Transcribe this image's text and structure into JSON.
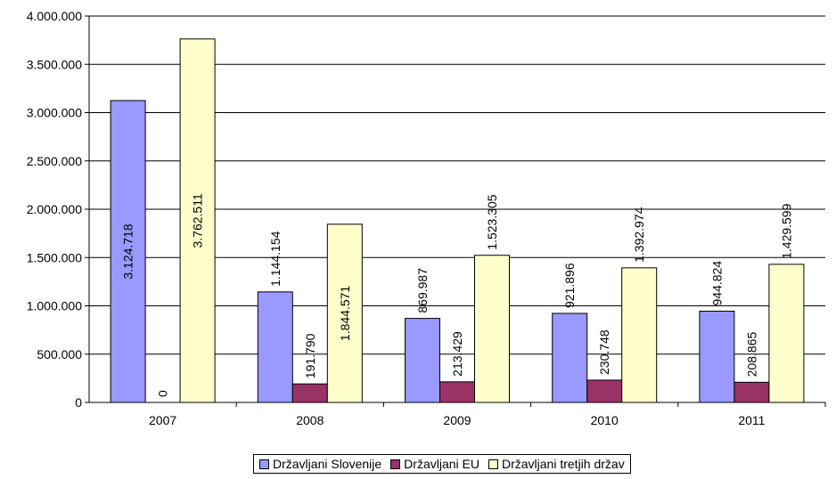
{
  "chart_data": {
    "type": "bar",
    "title": "",
    "xlabel": "",
    "ylabel": "",
    "categories": [
      "2007",
      "2008",
      "2009",
      "2010",
      "2011"
    ],
    "ylim": [
      0,
      4000000
    ],
    "yticks": [
      0,
      500000,
      1000000,
      1500000,
      2000000,
      2500000,
      3000000,
      3500000,
      4000000
    ],
    "ytick_labels": [
      "0",
      "500.000",
      "1.000.000",
      "1.500.000",
      "2.000.000",
      "2.500.000",
      "3.000.000",
      "3.500.000",
      "4.000.000"
    ],
    "grid": "horizontal",
    "legend_position": "bottom",
    "series": [
      {
        "name": "Državljani Slovenije",
        "color": "#9999FF",
        "values": [
          3124718,
          1144154,
          869987,
          921896,
          944824
        ],
        "labels": [
          "3.124.718",
          "1.144.154",
          "869.987",
          "921.896",
          "944.824"
        ]
      },
      {
        "name": "Državljani EU",
        "color": "#993366",
        "values": [
          0,
          191790,
          213429,
          230748,
          208865
        ],
        "labels": [
          "0",
          "191.790",
          "213.429",
          "230.748",
          "208.865"
        ]
      },
      {
        "name": "Državljani tretjih držav",
        "color": "#FFFFCC",
        "values": [
          3762511,
          1844571,
          1523305,
          1392974,
          1429599
        ],
        "labels": [
          "3.762.511",
          "1.844.571",
          "1.523.305",
          "1.392.974",
          "1.429.599"
        ]
      }
    ]
  }
}
